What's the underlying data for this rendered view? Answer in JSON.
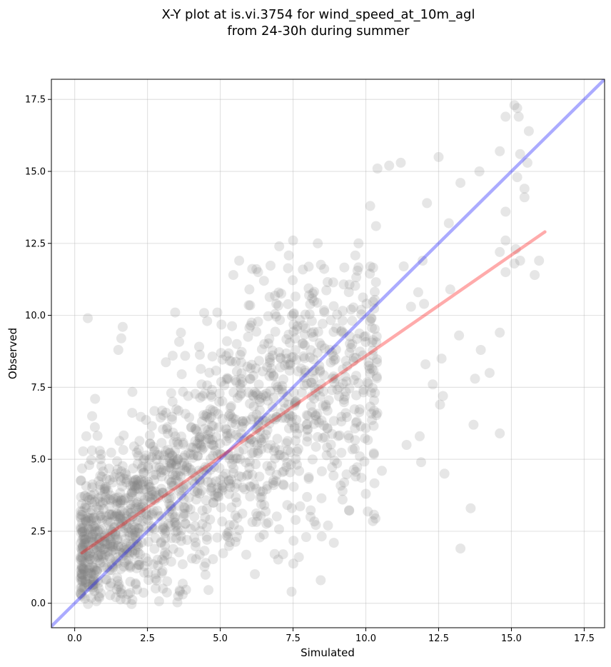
{
  "chart_data": {
    "type": "scatter",
    "title": [
      "X-Y plot at is.vi.3754 for wind_speed_at_10m_agl",
      "from 24-30h during summer"
    ],
    "xlabel": "Simulated",
    "ylabel": "Observed",
    "xlim": [
      -0.8,
      18.2
    ],
    "ylim": [
      -0.85,
      18.2
    ],
    "xticks": [
      "0.0",
      "2.5",
      "5.0",
      "7.5",
      "10.0",
      "12.5",
      "15.0",
      "17.5"
    ],
    "yticks": [
      "0.0",
      "2.5",
      "5.0",
      "7.5",
      "10.0",
      "12.5",
      "15.0",
      "17.5"
    ],
    "grid": true,
    "point_color": "#808080",
    "identity_line": {
      "x": [
        -0.8,
        18.2
      ],
      "y": [
        -0.8,
        18.2
      ],
      "color": "#0000ff"
    },
    "fit_line": {
      "x": [
        0.25,
        16.15
      ],
      "y": [
        1.75,
        12.9
      ],
      "color": "#ff0000"
    },
    "outlier_points": [
      [
        0.45,
        9.9
      ],
      [
        0.4,
        5.8
      ],
      [
        0.6,
        6.5
      ],
      [
        0.5,
        4.8
      ],
      [
        1.65,
        9.6
      ],
      [
        0.7,
        7.1
      ],
      [
        15.1,
        17.3
      ],
      [
        15.2,
        17.2
      ],
      [
        14.8,
        16.9
      ],
      [
        15.25,
        16.9
      ],
      [
        15.6,
        16.4
      ],
      [
        14.6,
        15.7
      ],
      [
        15.3,
        15.6
      ],
      [
        13.9,
        15.0
      ],
      [
        15.55,
        15.3
      ],
      [
        15.45,
        14.4
      ],
      [
        15.2,
        14.8
      ],
      [
        15.45,
        14.1
      ],
      [
        14.8,
        13.6
      ],
      [
        12.5,
        15.5
      ],
      [
        11.2,
        15.3
      ],
      [
        10.4,
        15.1
      ],
      [
        10.8,
        15.2
      ],
      [
        13.25,
        14.6
      ],
      [
        12.1,
        13.9
      ],
      [
        12.85,
        13.2
      ],
      [
        10.15,
        13.8
      ],
      [
        10.35,
        13.1
      ],
      [
        7.5,
        12.6
      ],
      [
        8.35,
        12.5
      ],
      [
        9.75,
        12.5
      ],
      [
        14.8,
        12.6
      ],
      [
        14.6,
        12.2
      ],
      [
        15.15,
        12.3
      ],
      [
        15.95,
        11.9
      ],
      [
        15.3,
        11.9
      ],
      [
        15.8,
        11.4
      ],
      [
        15.1,
        11.8
      ],
      [
        14.8,
        11.5
      ],
      [
        13.95,
        8.8
      ],
      [
        14.25,
        8.0
      ],
      [
        13.75,
        7.8
      ],
      [
        13.2,
        9.3
      ],
      [
        12.9,
        10.9
      ],
      [
        12.6,
        8.5
      ],
      [
        12.65,
        7.2
      ],
      [
        12.7,
        4.5
      ],
      [
        13.6,
        3.3
      ],
      [
        13.25,
        1.9
      ],
      [
        14.6,
        9.4
      ],
      [
        14.6,
        5.9
      ],
      [
        13.7,
        6.2
      ],
      [
        11.85,
        5.8
      ],
      [
        11.9,
        4.9
      ],
      [
        11.4,
        5.5
      ],
      [
        10.55,
        4.6
      ],
      [
        10.0,
        3.8
      ],
      [
        9.65,
        4.4
      ],
      [
        9.2,
        3.6
      ],
      [
        9.2,
        3.9
      ],
      [
        8.9,
        2.1
      ],
      [
        8.7,
        2.7
      ],
      [
        8.45,
        0.8
      ],
      [
        8.1,
        3.0
      ],
      [
        7.45,
        0.4
      ],
      [
        7.7,
        1.6
      ],
      [
        7.95,
        2.3
      ],
      [
        12.55,
        6.9
      ],
      [
        12.3,
        7.6
      ],
      [
        12.05,
        8.3
      ],
      [
        11.95,
        11.9
      ],
      [
        11.3,
        11.7
      ],
      [
        11.8,
        10.8
      ],
      [
        11.55,
        10.3
      ],
      [
        12.0,
        10.4
      ],
      [
        6.3,
        11.5
      ],
      [
        5.65,
        11.9
      ],
      [
        5.45,
        11.4
      ],
      [
        6.5,
        11.2
      ],
      [
        6.0,
        10.9
      ],
      [
        4.9,
        10.1
      ],
      [
        3.45,
        10.1
      ],
      [
        4.55,
        9.8
      ],
      [
        3.65,
        9.4
      ],
      [
        1.6,
        9.2
      ],
      [
        1.5,
        8.8
      ]
    ]
  }
}
